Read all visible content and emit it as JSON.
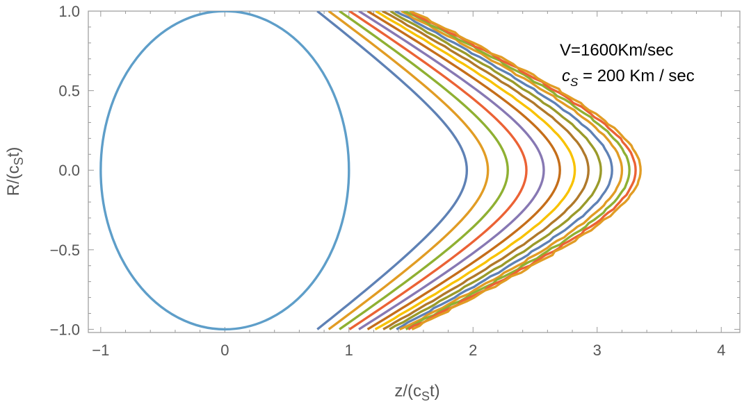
{
  "chart_data": {
    "type": "line",
    "title": "",
    "xlabel": {
      "base": "z/(c",
      "sub": "S",
      "tail": "t)"
    },
    "ylabel": {
      "base": "R/(c",
      "sub": "S",
      "tail": "t)"
    },
    "xlim": [
      -1.1,
      4.15
    ],
    "ylim": [
      -1.02,
      1.0
    ],
    "xticks": [
      -1,
      0,
      1,
      2,
      3,
      4
    ],
    "xtick_labels": [
      "−1",
      "0",
      "1",
      "2",
      "3",
      "4"
    ],
    "yticks": [
      -1.0,
      -0.5,
      0.0,
      0.5,
      1.0
    ],
    "ytick_labels": [
      "−1.0",
      "−0.5",
      "0.0",
      "0.5",
      "1.0"
    ],
    "grid": false,
    "frame": true,
    "annotations": {
      "line1": "V=1600Km/sec",
      "line2_sym": "c",
      "line2_sub": "S",
      "line2_rest": " = 200 Km / sec"
    },
    "circle": {
      "center": [
        0,
        0
      ],
      "radius": 1,
      "color": "#5e9ec9"
    },
    "series": [
      {
        "vertex_z": 1.95,
        "color": "#5e81b5",
        "wiggle": 0
      },
      {
        "vertex_z": 2.12,
        "color": "#e19c24",
        "wiggle": 0
      },
      {
        "vertex_z": 2.28,
        "color": "#8fb032",
        "wiggle": 0
      },
      {
        "vertex_z": 2.43,
        "color": "#eb6235",
        "wiggle": 0
      },
      {
        "vertex_z": 2.57,
        "color": "#8778b3",
        "wiggle": 0
      },
      {
        "vertex_z": 2.7,
        "color": "#c56e1a",
        "wiggle": 0
      },
      {
        "vertex_z": 2.82,
        "color": "#f8c200",
        "wiggle": 0.2
      },
      {
        "vertex_z": 2.93,
        "color": "#b0792a",
        "wiggle": 0.3
      },
      {
        "vertex_z": 3.03,
        "color": "#9a9a2a",
        "wiggle": 0.4
      },
      {
        "vertex_z": 3.12,
        "color": "#5e81b5",
        "wiggle": 0.55
      },
      {
        "vertex_z": 3.2,
        "color": "#e19c24",
        "wiggle": 0.7
      },
      {
        "vertex_z": 3.26,
        "color": "#8fb032",
        "wiggle": 0.8
      },
      {
        "vertex_z": 3.31,
        "color": "#eb6235",
        "wiggle": 0.9
      },
      {
        "vertex_z": 3.35,
        "color": "#e19c24",
        "wiggle": 1.0
      }
    ]
  }
}
